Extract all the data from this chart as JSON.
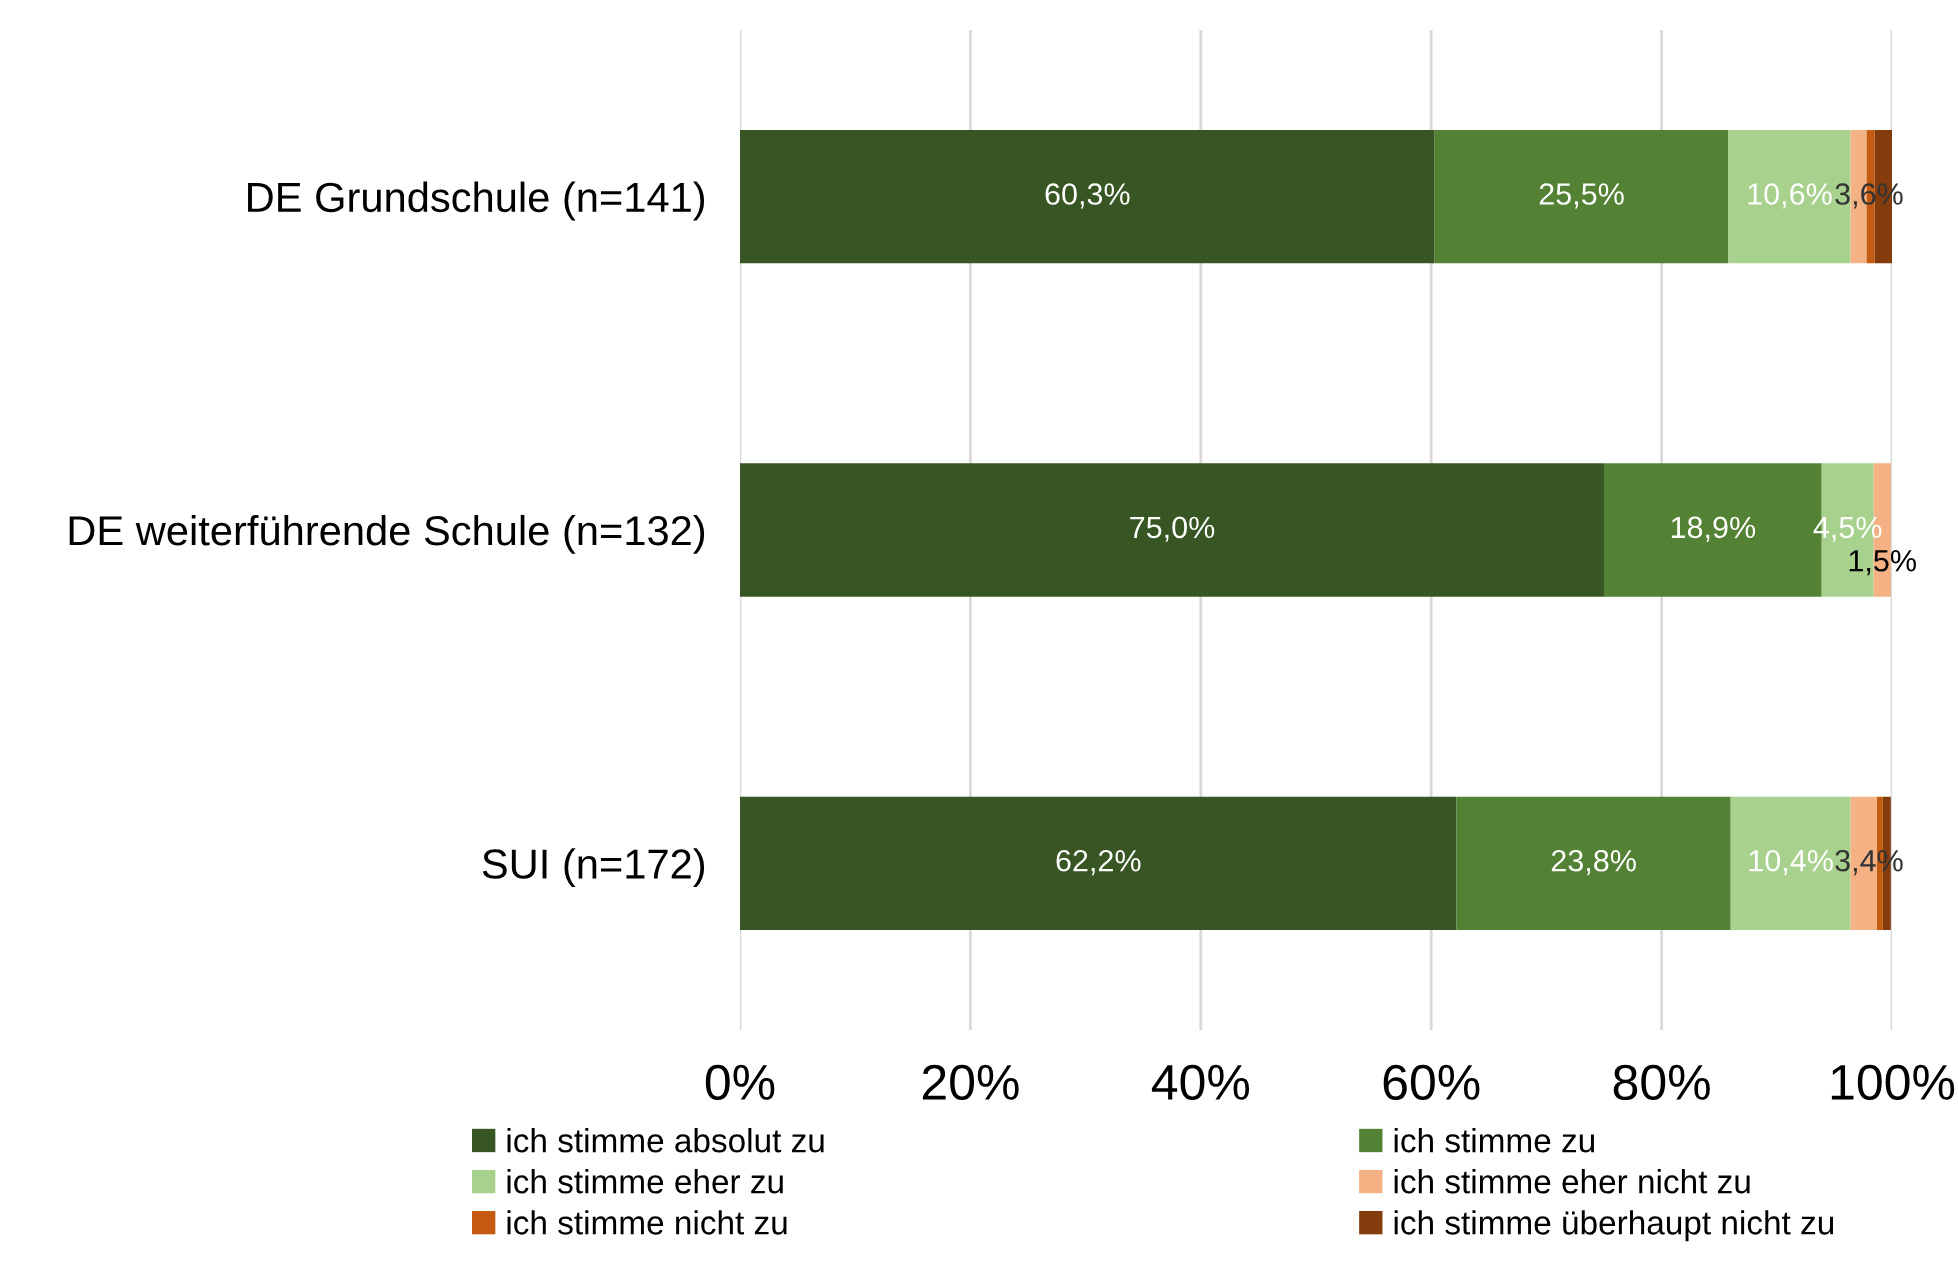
{
  "chart_data": {
    "type": "bar",
    "orientation": "horizontal",
    "stacked": true,
    "categories": [
      "DE Grundschule (n=141)",
      "DE weiterführende Schule (n=132)",
      "SUI (n=172)"
    ],
    "series": [
      {
        "name": "ich stimme absolut zu",
        "color": "#375623",
        "values": [
          60.3,
          75.0,
          62.2
        ],
        "value_labels": [
          "60,3%",
          "75,0%",
          "62,2%"
        ]
      },
      {
        "name": "ich stimme zu",
        "color": "#548235",
        "values": [
          25.5,
          18.9,
          23.8
        ],
        "value_labels": [
          "25,5%",
          "18,9%",
          "23,8%"
        ]
      },
      {
        "name": "ich stimme eher zu",
        "color": "#a9d18e",
        "values": [
          10.6,
          4.5,
          10.4
        ],
        "value_labels": [
          "10,6%",
          "4,5%",
          "10,4%"
        ]
      },
      {
        "name": "ich stimme eher nicht zu",
        "color": "#f4b183",
        "values": [
          1.4,
          1.5,
          2.3
        ],
        "value_labels": [
          null,
          "1,5%",
          null
        ]
      },
      {
        "name": "ich stimme nicht zu",
        "color": "#c55a11",
        "values": [
          0.7,
          0,
          0.5
        ],
        "value_labels": [
          null,
          null,
          null
        ]
      },
      {
        "name": "ich stimme überhaupt nicht zu",
        "color": "#843c0c",
        "values": [
          1.5,
          0,
          0.7
        ],
        "value_labels": [
          null,
          null,
          null
        ]
      }
    ],
    "annotations": [
      {
        "text": "3,6%",
        "x": 98,
        "y": "DE Grundschule (n=141)"
      },
      {
        "text": "3,4%",
        "x": 98,
        "y": "SUI (n=172)"
      }
    ],
    "xlim": [
      0,
      100
    ],
    "xticks": [
      {
        "value": 0,
        "label": "0%"
      },
      {
        "value": 20,
        "label": "20%"
      },
      {
        "value": 40,
        "label": "40%"
      },
      {
        "value": 60,
        "label": "60%"
      },
      {
        "value": 80,
        "label": "80%"
      },
      {
        "value": 100,
        "label": "100%"
      }
    ],
    "grid": "x",
    "legend": "bottom"
  }
}
